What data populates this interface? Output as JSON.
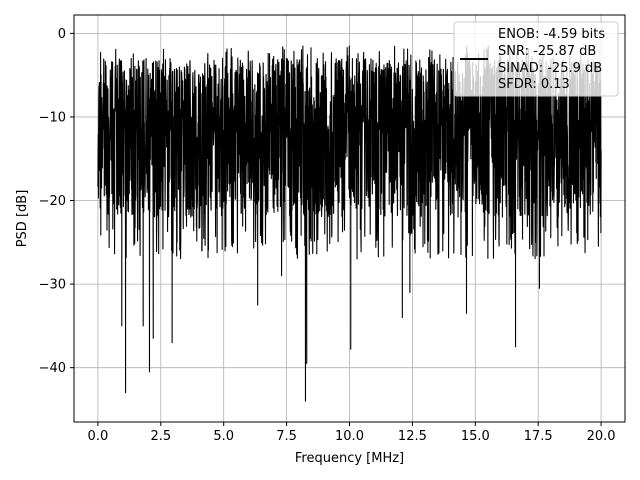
{
  "chart_data": {
    "type": "line",
    "title": "",
    "xlabel": "Frequency [MHz]",
    "ylabel": "PSD [dB]",
    "xlim": [
      -0.95,
      20.95
    ],
    "ylim": [
      -46.5,
      2.2
    ],
    "xticks": [
      0.0,
      2.5,
      5.0,
      7.5,
      10.0,
      12.5,
      15.0,
      17.5,
      20.0
    ],
    "xtick_labels": [
      "0.0",
      "2.5",
      "5.0",
      "7.5",
      "10.0",
      "12.5",
      "15.0",
      "17.5",
      "20.0"
    ],
    "yticks": [
      0,
      -10,
      -20,
      -30,
      -40
    ],
    "ytick_labels": [
      "0",
      "−10",
      "−20",
      "−30",
      "−40"
    ],
    "grid": true,
    "legend_position": "top-right",
    "legend": [
      "ENOB: -4.59 bits",
      "SNR: -25.87 dB",
      "SINAD: -25.9 dB",
      "SFDR: 0.13"
    ],
    "series": [
      {
        "color": "#000000",
        "description": "dense noise-like PSD trace spanning 0 to 20 MHz, mostly between about -25 and -2 dB",
        "x_range": [
          0,
          20
        ],
        "typical_upper_envelope": -3,
        "typical_lower_envelope": -23,
        "notable_dips": [
          {
            "x": 0.95,
            "y": -35
          },
          {
            "x": 1.1,
            "y": -43
          },
          {
            "x": 1.8,
            "y": -35
          },
          {
            "x": 2.05,
            "y": -40.5
          },
          {
            "x": 2.2,
            "y": -36.5
          },
          {
            "x": 2.95,
            "y": -37
          },
          {
            "x": 6.35,
            "y": -32.5
          },
          {
            "x": 7.3,
            "y": -29
          },
          {
            "x": 8.25,
            "y": -44
          },
          {
            "x": 8.3,
            "y": -39.5
          },
          {
            "x": 10.05,
            "y": -37.8
          },
          {
            "x": 12.1,
            "y": -34
          },
          {
            "x": 12.4,
            "y": -31
          },
          {
            "x": 14.65,
            "y": -33.5
          },
          {
            "x": 16.6,
            "y": -37.5
          },
          {
            "x": 17.55,
            "y": -30.5
          }
        ]
      }
    ]
  }
}
